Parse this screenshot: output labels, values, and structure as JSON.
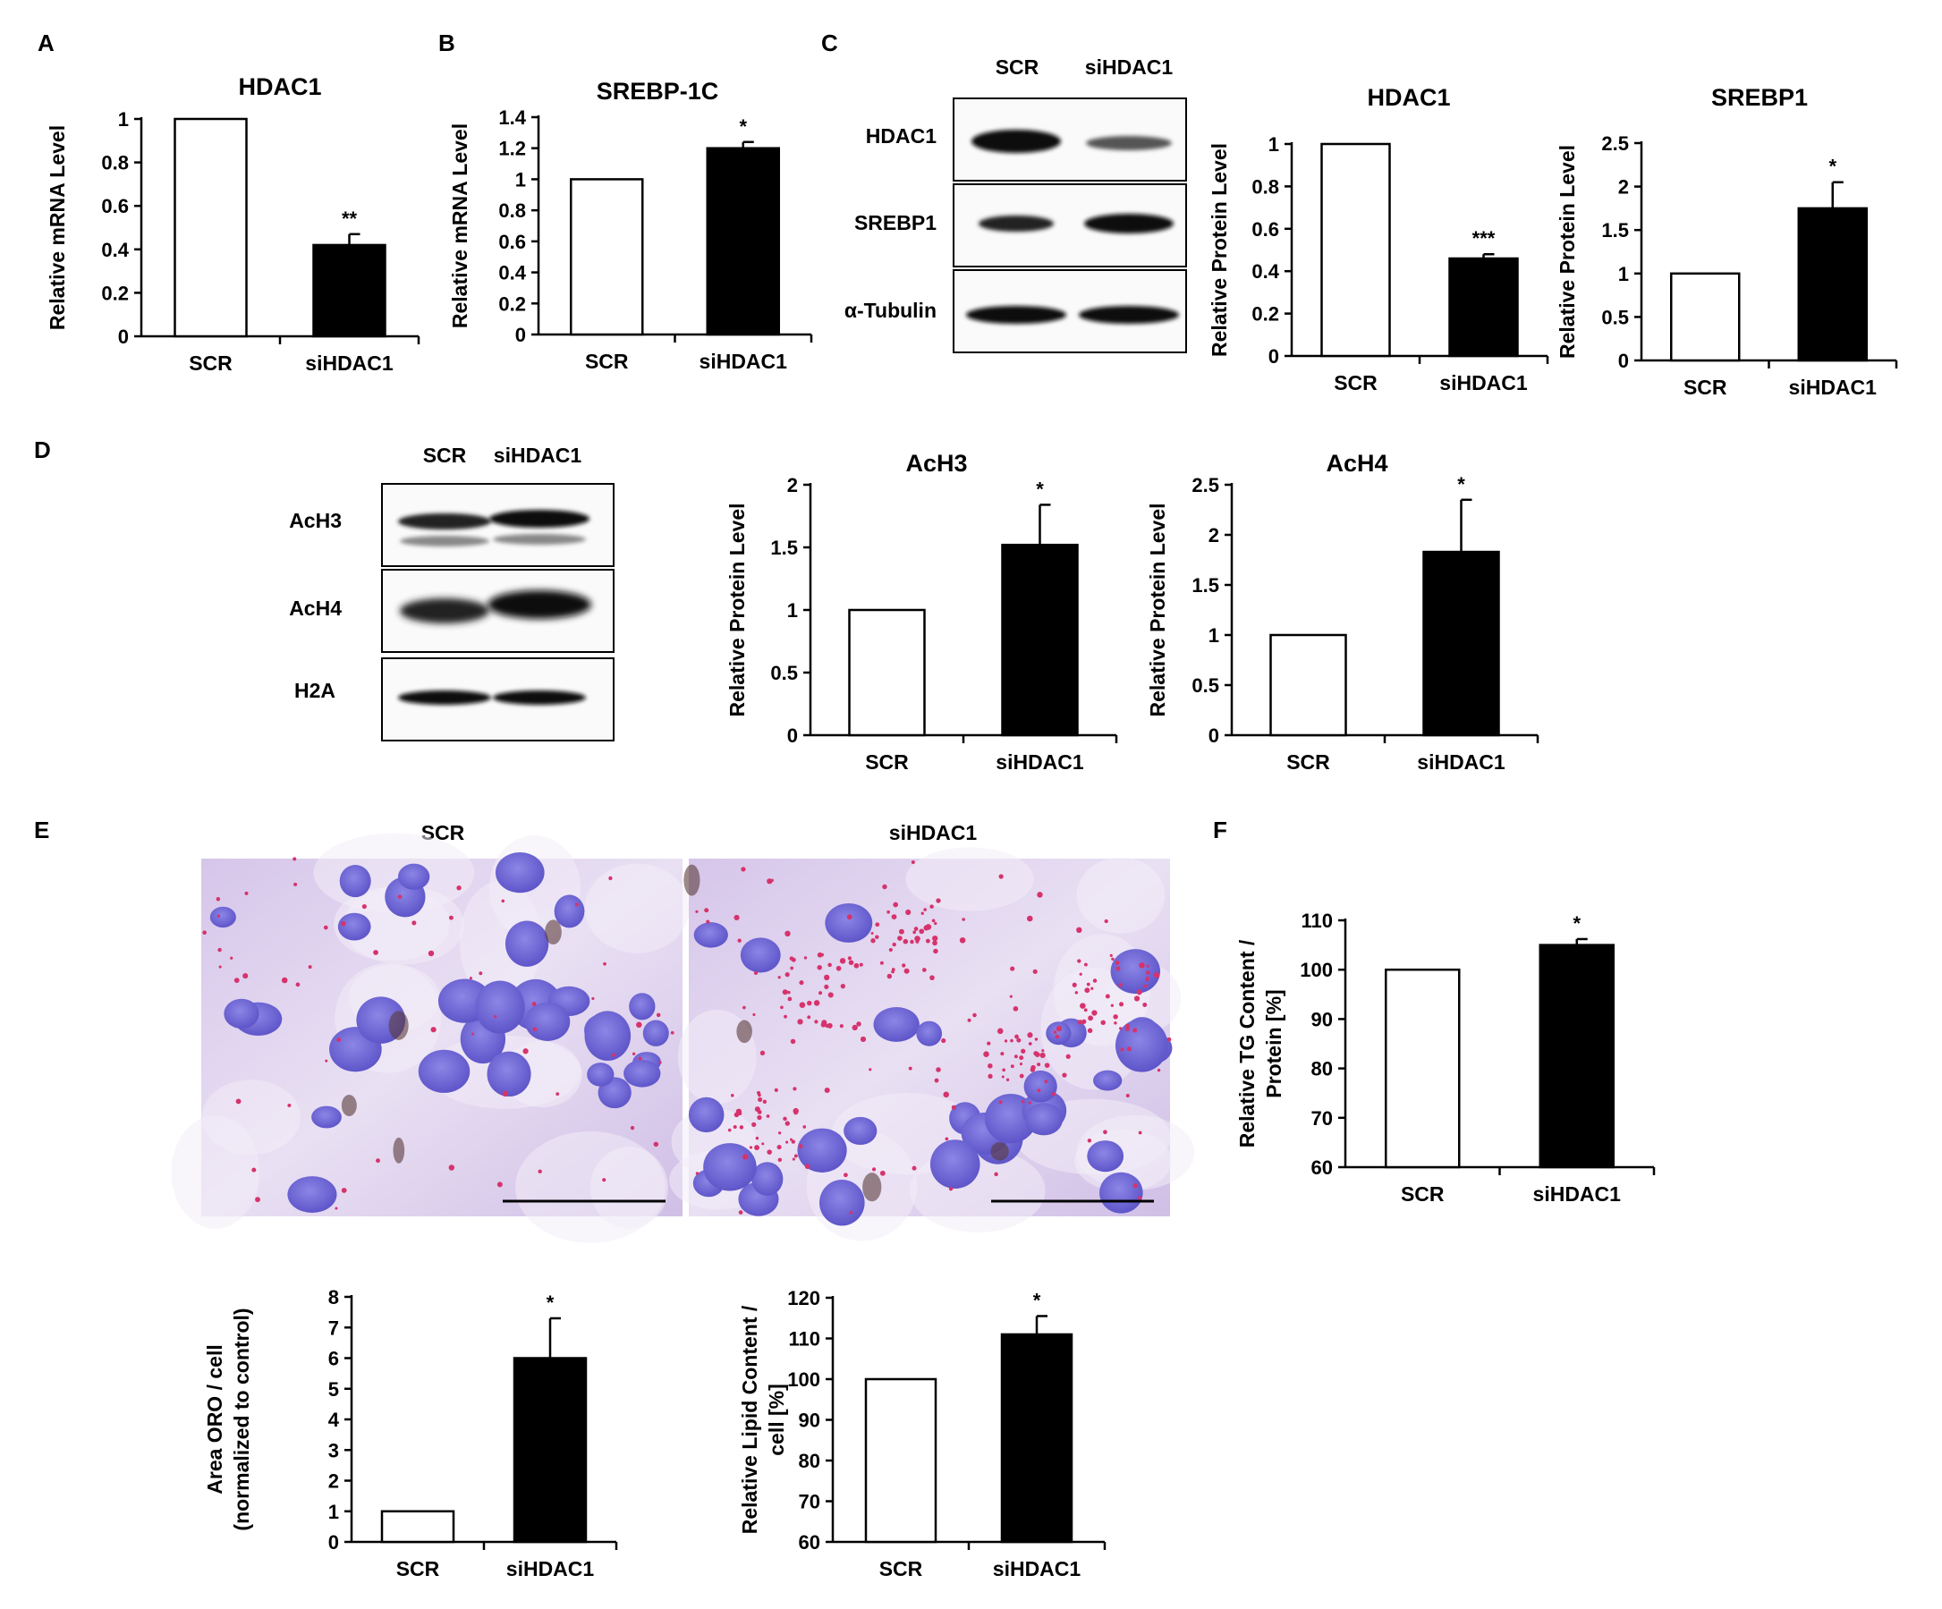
{
  "panels": {
    "A": {
      "label": "A"
    },
    "B": {
      "label": "B"
    },
    "C": {
      "label": "C"
    },
    "D": {
      "label": "D"
    },
    "E": {
      "label": "E"
    },
    "F": {
      "label": "F"
    }
  },
  "blots": {
    "C": {
      "columns": [
        "SCR",
        "siHDAC1"
      ],
      "rows": [
        "HDAC1",
        "SREBP1",
        "α-Tubulin"
      ]
    },
    "D": {
      "columns": [
        "SCR",
        "siHDAC1"
      ],
      "rows": [
        "AcH3",
        "AcH4",
        "H2A"
      ]
    }
  },
  "micrographs": {
    "left_title": "SCR",
    "right_title": "siHDAC1"
  },
  "chart_data": [
    {
      "id": "A",
      "type": "bar",
      "title": "HDAC1",
      "ylabel": [
        "Relative mRNA Level"
      ],
      "categories": [
        "SCR",
        "siHDAC1"
      ],
      "values": [
        1,
        0.42
      ],
      "errors": [
        0,
        0.05
      ],
      "significance": [
        "",
        "**"
      ],
      "ylim": [
        0,
        1
      ],
      "yticks": [
        0,
        0.2,
        0.4,
        0.6,
        0.8,
        1
      ],
      "fills": [
        "#ffffff",
        "#000000"
      ],
      "grid": false
    },
    {
      "id": "B",
      "type": "bar",
      "title": "SREBP-1C",
      "ylabel": [
        "Relative mRNA Level"
      ],
      "categories": [
        "SCR",
        "siHDAC1"
      ],
      "values": [
        1,
        1.2
      ],
      "errors": [
        0,
        0.04
      ],
      "significance": [
        "",
        "*"
      ],
      "ylim": [
        0,
        1.4
      ],
      "yticks": [
        0,
        0.2,
        0.4,
        0.6,
        0.8,
        1,
        1.2,
        1.4
      ],
      "fills": [
        "#ffffff",
        "#000000"
      ],
      "grid": false
    },
    {
      "id": "C1",
      "type": "bar",
      "title": "HDAC1",
      "ylabel": [
        "Relative Protein Level"
      ],
      "categories": [
        "SCR",
        "siHDAC1"
      ],
      "values": [
        1,
        0.46
      ],
      "errors": [
        0,
        0.02
      ],
      "significance": [
        "",
        "***"
      ],
      "ylim": [
        0,
        1
      ],
      "yticks": [
        0,
        0.2,
        0.4,
        0.6,
        0.8,
        1
      ],
      "fills": [
        "#ffffff",
        "#000000"
      ],
      "grid": false
    },
    {
      "id": "C2",
      "type": "bar",
      "title": "SREBP1",
      "ylabel": [
        "Relative Protein Level"
      ],
      "categories": [
        "SCR",
        "siHDAC1"
      ],
      "values": [
        1,
        1.75
      ],
      "errors": [
        0,
        0.3
      ],
      "significance": [
        "",
        "*"
      ],
      "ylim": [
        0,
        2.5
      ],
      "yticks": [
        0,
        0.5,
        1,
        1.5,
        2,
        2.5
      ],
      "fills": [
        "#ffffff",
        "#000000"
      ],
      "grid": false
    },
    {
      "id": "D1",
      "type": "bar",
      "title": "AcH3",
      "ylabel": [
        "Relative Protein Level"
      ],
      "categories": [
        "SCR",
        "siHDAC1"
      ],
      "values": [
        1,
        1.52
      ],
      "errors": [
        0,
        0.32
      ],
      "significance": [
        "",
        "*"
      ],
      "ylim": [
        0,
        2
      ],
      "yticks": [
        0,
        0.5,
        1,
        1.5,
        2
      ],
      "fills": [
        "#ffffff",
        "#000000"
      ],
      "grid": false
    },
    {
      "id": "D2",
      "type": "bar",
      "title": "AcH4",
      "ylabel": [
        "Relative Protein Level"
      ],
      "categories": [
        "SCR",
        "siHDAC1"
      ],
      "values": [
        1,
        1.83
      ],
      "errors": [
        0,
        0.52
      ],
      "significance": [
        "",
        "*"
      ],
      "ylim": [
        0,
        2.5
      ],
      "yticks": [
        0,
        0.5,
        1,
        1.5,
        2,
        2.5
      ],
      "fills": [
        "#ffffff",
        "#000000"
      ],
      "grid": false
    },
    {
      "id": "F",
      "type": "bar",
      "title": "",
      "ylabel": [
        "Relative TG Content /",
        "Protein [%]"
      ],
      "categories": [
        "SCR",
        "siHDAC1"
      ],
      "values": [
        100,
        105
      ],
      "errors": [
        0,
        1.2
      ],
      "significance": [
        "",
        "*"
      ],
      "ylim": [
        60,
        110
      ],
      "yticks": [
        60,
        70,
        80,
        90,
        100,
        110
      ],
      "fills": [
        "#ffffff",
        "#000000"
      ],
      "grid": false
    },
    {
      "id": "E1",
      "type": "bar",
      "title": "",
      "ylabel": [
        "Area ORO / cell",
        "(normalized to control)"
      ],
      "categories": [
        "SCR",
        "siHDAC1"
      ],
      "values": [
        1,
        6
      ],
      "errors": [
        0,
        1.3
      ],
      "significance": [
        "",
        "*"
      ],
      "ylim": [
        0,
        8
      ],
      "yticks": [
        0,
        1,
        2,
        3,
        4,
        5,
        6,
        7,
        8
      ],
      "fills": [
        "#ffffff",
        "#000000"
      ],
      "grid": false
    },
    {
      "id": "E2",
      "type": "bar",
      "title": "",
      "ylabel": [
        "Relative Lipid Content /",
        "cell [%]"
      ],
      "categories": [
        "SCR",
        "siHDAC1"
      ],
      "values": [
        100,
        111
      ],
      "errors": [
        0,
        4.5
      ],
      "significance": [
        "",
        "*"
      ],
      "ylim": [
        60,
        120
      ],
      "yticks": [
        60,
        70,
        80,
        90,
        100,
        110,
        120
      ],
      "fills": [
        "#ffffff",
        "#000000"
      ],
      "grid": false
    }
  ]
}
